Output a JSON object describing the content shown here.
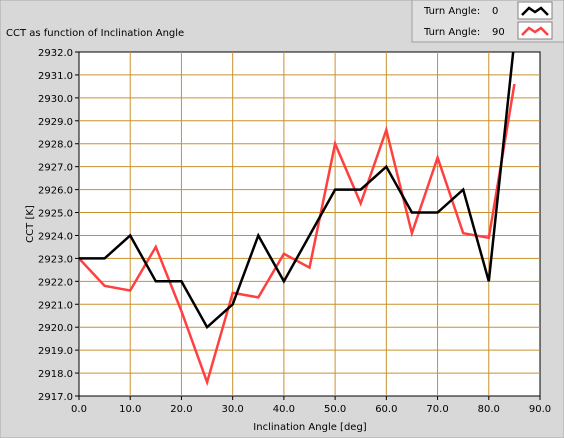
{
  "chart_data": {
    "type": "line",
    "title": "CCT as function of Inclination Angle",
    "xlabel": "Inclination Angle [deg]",
    "ylabel": "CCT [K]",
    "xlim": [
      0,
      90
    ],
    "ylim": [
      2917,
      2932
    ],
    "x_ticks": [
      0,
      10,
      20,
      30,
      40,
      50,
      60,
      70,
      80,
      90
    ],
    "x_tick_labels": [
      "0.0",
      "10.0",
      "20.0",
      "30.0",
      "40.0",
      "50.0",
      "60.0",
      "70.0",
      "80.0",
      "90.0"
    ],
    "y_ticks": [
      2917,
      2918,
      2919,
      2920,
      2921,
      2922,
      2923,
      2924,
      2925,
      2926,
      2927,
      2928,
      2929,
      2930,
      2931,
      2932
    ],
    "y_tick_labels": [
      "2917.0",
      "2918.0",
      "2919.0",
      "2920.0",
      "2921.0",
      "2922.0",
      "2923.0",
      "2924.0",
      "2925.0",
      "2926.0",
      "2927.0",
      "2928.0",
      "2929.0",
      "2930.0",
      "2931.0",
      "2932.0"
    ],
    "grid": true,
    "legend_position": "top-right",
    "series": [
      {
        "name": "Turn Angle:",
        "legend_value": "0",
        "color": "#000000",
        "x": [
          0,
          5,
          10,
          15,
          20,
          25,
          30,
          35,
          40,
          45,
          50,
          55,
          60,
          65,
          70,
          75,
          80,
          85
        ],
        "y": [
          2923,
          2923,
          2924,
          2922,
          2922,
          2920,
          2921,
          2924,
          2922,
          2924,
          2926,
          2926,
          2927,
          2925,
          2925,
          2926,
          2922,
          2932.5
        ]
      },
      {
        "name": "Turn Angle:",
        "legend_value": "90",
        "color": "#ff4040",
        "x": [
          0,
          5,
          10,
          15,
          20,
          25,
          30,
          35,
          40,
          45,
          50,
          55,
          60,
          65,
          70,
          75,
          80,
          85
        ],
        "y": [
          2923,
          2921.8,
          2921.6,
          2923.5,
          2920.7,
          2917.6,
          2921.5,
          2921.3,
          2923.2,
          2922.6,
          2928.0,
          2925.4,
          2928.6,
          2924.1,
          2927.4,
          2924.1,
          2923.9,
          2930.6
        ]
      }
    ]
  },
  "colors": {
    "plot_bg": "#ffffff",
    "grid": "#c8922e",
    "frame_bg": "#d8d8d8"
  }
}
